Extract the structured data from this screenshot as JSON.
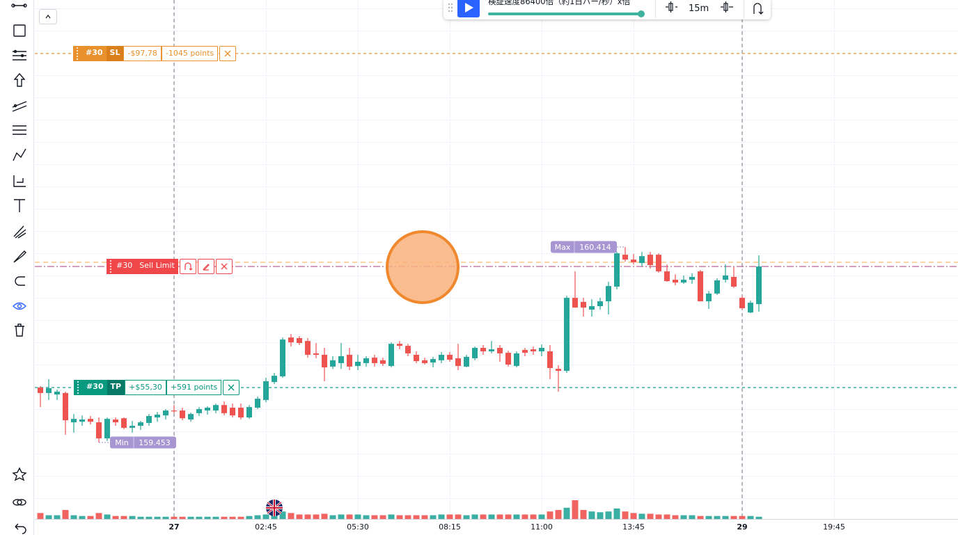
{
  "player": {
    "speed_text": "検証速度86400倍（約1日バー/秒）x倍",
    "timeframe": "15m"
  },
  "orders": {
    "sl": {
      "id": "#30",
      "tag": "SL",
      "pnl": "-$97,78",
      "points": "-1045 points",
      "price": 161.365
    },
    "entry": {
      "id": "#30",
      "tag": "Sell Limit",
      "price": 160.318
    },
    "tp": {
      "id": "#30",
      "tag": "TP",
      "pnl": "+$55,30",
      "points": "+591 points",
      "price": 159.723
    }
  },
  "chart_data": {
    "type": "candlestick",
    "categories": [
      null,
      null,
      null,
      null,
      null,
      null,
      null,
      null,
      null,
      null,
      null,
      null,
      null,
      null,
      null,
      null,
      "27",
      null,
      null,
      null,
      null,
      null,
      null,
      null,
      null,
      null,
      null,
      "02:45",
      null,
      null,
      null,
      null,
      null,
      null,
      null,
      null,
      null,
      null,
      "05:30",
      null,
      null,
      null,
      null,
      null,
      null,
      null,
      null,
      null,
      null,
      "08:15",
      null,
      null,
      null,
      null,
      null,
      null,
      null,
      null,
      null,
      null,
      "11:00",
      null,
      null,
      null,
      null,
      null,
      null,
      null,
      null,
      null,
      null,
      "13:45",
      null,
      null,
      null,
      null,
      null,
      null,
      null,
      null,
      null,
      null,
      null,
      null,
      "29",
      null,
      null,
      null,
      null,
      null,
      null,
      null,
      null,
      null,
      null,
      "19:45"
    ],
    "open": [
      159.723,
      159.696,
      159.689,
      159.696,
      159.552,
      159.555,
      159.569,
      159.552,
      159.473,
      159.566,
      159.572,
      159.525,
      159.535,
      159.549,
      159.576,
      159.586,
      159.61,
      159.61,
      159.566,
      159.597,
      159.61,
      159.61,
      159.637,
      159.624,
      159.624,
      159.576,
      159.624,
      159.662,
      159.75,
      159.778,
      159.969,
      159.966,
      159.952,
      159.891,
      159.884,
      159.826,
      159.843,
      159.884,
      159.829,
      159.843,
      159.87,
      159.857,
      159.829,
      159.938,
      159.928,
      159.884,
      159.857,
      159.846,
      159.857,
      159.884,
      159.867,
      159.826,
      159.867,
      159.918,
      159.901,
      159.918,
      159.894,
      159.829,
      159.908,
      159.911,
      159.901,
      159.901,
      159.815,
      159.805,
      160.164,
      160.144,
      160.106,
      160.123,
      160.147,
      160.219,
      160.376,
      160.352,
      160.335,
      160.376,
      160.376,
      160.294,
      160.253,
      160.239,
      160.253,
      160.294,
      160.147,
      160.185,
      160.253,
      160.267,
      160.164,
      160.092,
      160.133,
      null,
      null,
      null,
      null,
      null,
      null,
      null,
      null,
      null
    ],
    "high": [
      159.73,
      159.764,
      159.713,
      159.703,
      159.593,
      159.586,
      159.583,
      159.576,
      159.576,
      159.576,
      159.576,
      159.559,
      159.559,
      159.593,
      159.603,
      159.617,
      159.637,
      159.624,
      159.6,
      159.627,
      159.631,
      159.644,
      159.655,
      159.644,
      159.644,
      159.637,
      159.679,
      159.771,
      159.795,
      159.969,
      159.986,
      159.976,
      159.966,
      159.942,
      159.918,
      159.877,
      159.942,
      159.918,
      159.884,
      159.877,
      159.884,
      159.87,
      159.945,
      159.952,
      159.938,
      159.901,
      159.87,
      159.874,
      159.898,
      159.898,
      159.938,
      159.884,
      159.925,
      159.932,
      159.952,
      159.932,
      159.904,
      159.901,
      159.918,
      159.925,
      159.935,
      159.932,
      159.833,
      160.174,
      160.294,
      160.164,
      160.157,
      160.164,
      160.243,
      160.39,
      160.414,
      160.38,
      160.39,
      160.39,
      160.383,
      160.328,
      160.28,
      160.274,
      160.284,
      160.301,
      160.198,
      160.26,
      160.328,
      160.315,
      160.174,
      160.15,
      160.373,
      null,
      null,
      null,
      null,
      null,
      null,
      null,
      null,
      null
    ],
    "low": [
      159.627,
      159.662,
      159.662,
      159.491,
      159.501,
      159.535,
      159.542,
      159.453,
      159.46,
      159.535,
      159.518,
      159.501,
      159.515,
      159.535,
      159.555,
      159.566,
      159.597,
      159.562,
      159.555,
      159.583,
      159.59,
      159.597,
      159.586,
      159.576,
      159.566,
      159.569,
      159.617,
      159.651,
      159.74,
      159.771,
      159.925,
      159.932,
      159.87,
      159.867,
      159.754,
      159.815,
      159.815,
      159.809,
      159.809,
      159.826,
      159.826,
      159.829,
      159.822,
      159.911,
      159.877,
      159.843,
      159.836,
      159.822,
      159.843,
      159.85,
      159.809,
      159.822,
      159.857,
      159.884,
      159.891,
      159.85,
      159.826,
      159.822,
      159.877,
      159.884,
      159.877,
      159.764,
      159.703,
      159.795,
      160.116,
      160.072,
      160.072,
      160.106,
      160.082,
      160.205,
      160.342,
      160.328,
      160.318,
      160.308,
      160.287,
      160.243,
      160.226,
      160.233,
      160.233,
      160.147,
      160.11,
      160.178,
      160.239,
      160.212,
      160.106,
      160.089,
      160.096,
      null,
      null,
      null,
      null,
      null,
      null,
      null,
      null,
      null
    ],
    "close": [
      159.696,
      159.72,
      159.703,
      159.562,
      159.569,
      159.566,
      159.555,
      159.473,
      159.569,
      159.552,
      159.525,
      159.535,
      159.552,
      159.583,
      159.59,
      159.61,
      159.607,
      159.572,
      159.593,
      159.617,
      159.624,
      159.637,
      159.597,
      159.586,
      159.576,
      159.627,
      159.668,
      159.754,
      159.781,
      159.959,
      159.945,
      159.942,
      159.884,
      159.884,
      159.822,
      159.857,
      159.877,
      159.826,
      159.85,
      159.867,
      159.843,
      159.84,
      159.938,
      159.928,
      159.891,
      159.853,
      159.843,
      159.863,
      159.884,
      159.86,
      159.829,
      159.874,
      159.918,
      159.901,
      159.911,
      159.891,
      159.836,
      159.891,
      159.894,
      159.901,
      159.918,
      159.819,
      159.805,
      160.164,
      160.116,
      160.116,
      160.123,
      160.147,
      160.222,
      160.383,
      160.352,
      160.339,
      160.369,
      160.325,
      160.294,
      160.246,
      160.239,
      160.253,
      160.267,
      160.147,
      160.185,
      160.25,
      160.274,
      160.219,
      160.113,
      160.14,
      160.318,
      null,
      null,
      null,
      null,
      null,
      null,
      null,
      null,
      null
    ],
    "volume": [
      8,
      5,
      5,
      12,
      5,
      4,
      4,
      8,
      6,
      4,
      4,
      4,
      3,
      3,
      3,
      3,
      3,
      3,
      3,
      3,
      3,
      3,
      3,
      3,
      3,
      4,
      5,
      6,
      6,
      10,
      8,
      6,
      6,
      6,
      7,
      5,
      6,
      6,
      6,
      5,
      5,
      5,
      6,
      5,
      5,
      5,
      5,
      5,
      6,
      6,
      6,
      5,
      6,
      6,
      6,
      6,
      6,
      6,
      6,
      6,
      6,
      10,
      12,
      15,
      25,
      12,
      10,
      9,
      10,
      14,
      10,
      8,
      7,
      7,
      6,
      6,
      5,
      5,
      5,
      4,
      4,
      4,
      4,
      4,
      4,
      4,
      3,
      null,
      null,
      null,
      null,
      null,
      null,
      null,
      null,
      null
    ],
    "colors": {
      "up": "#26a69a",
      "down": "#ef5350"
    },
    "max_label": {
      "label": "Max",
      "value": 160.414
    },
    "min_label": {
      "label": "Min",
      "value": 159.453
    },
    "price_line": 160.339
  }
}
